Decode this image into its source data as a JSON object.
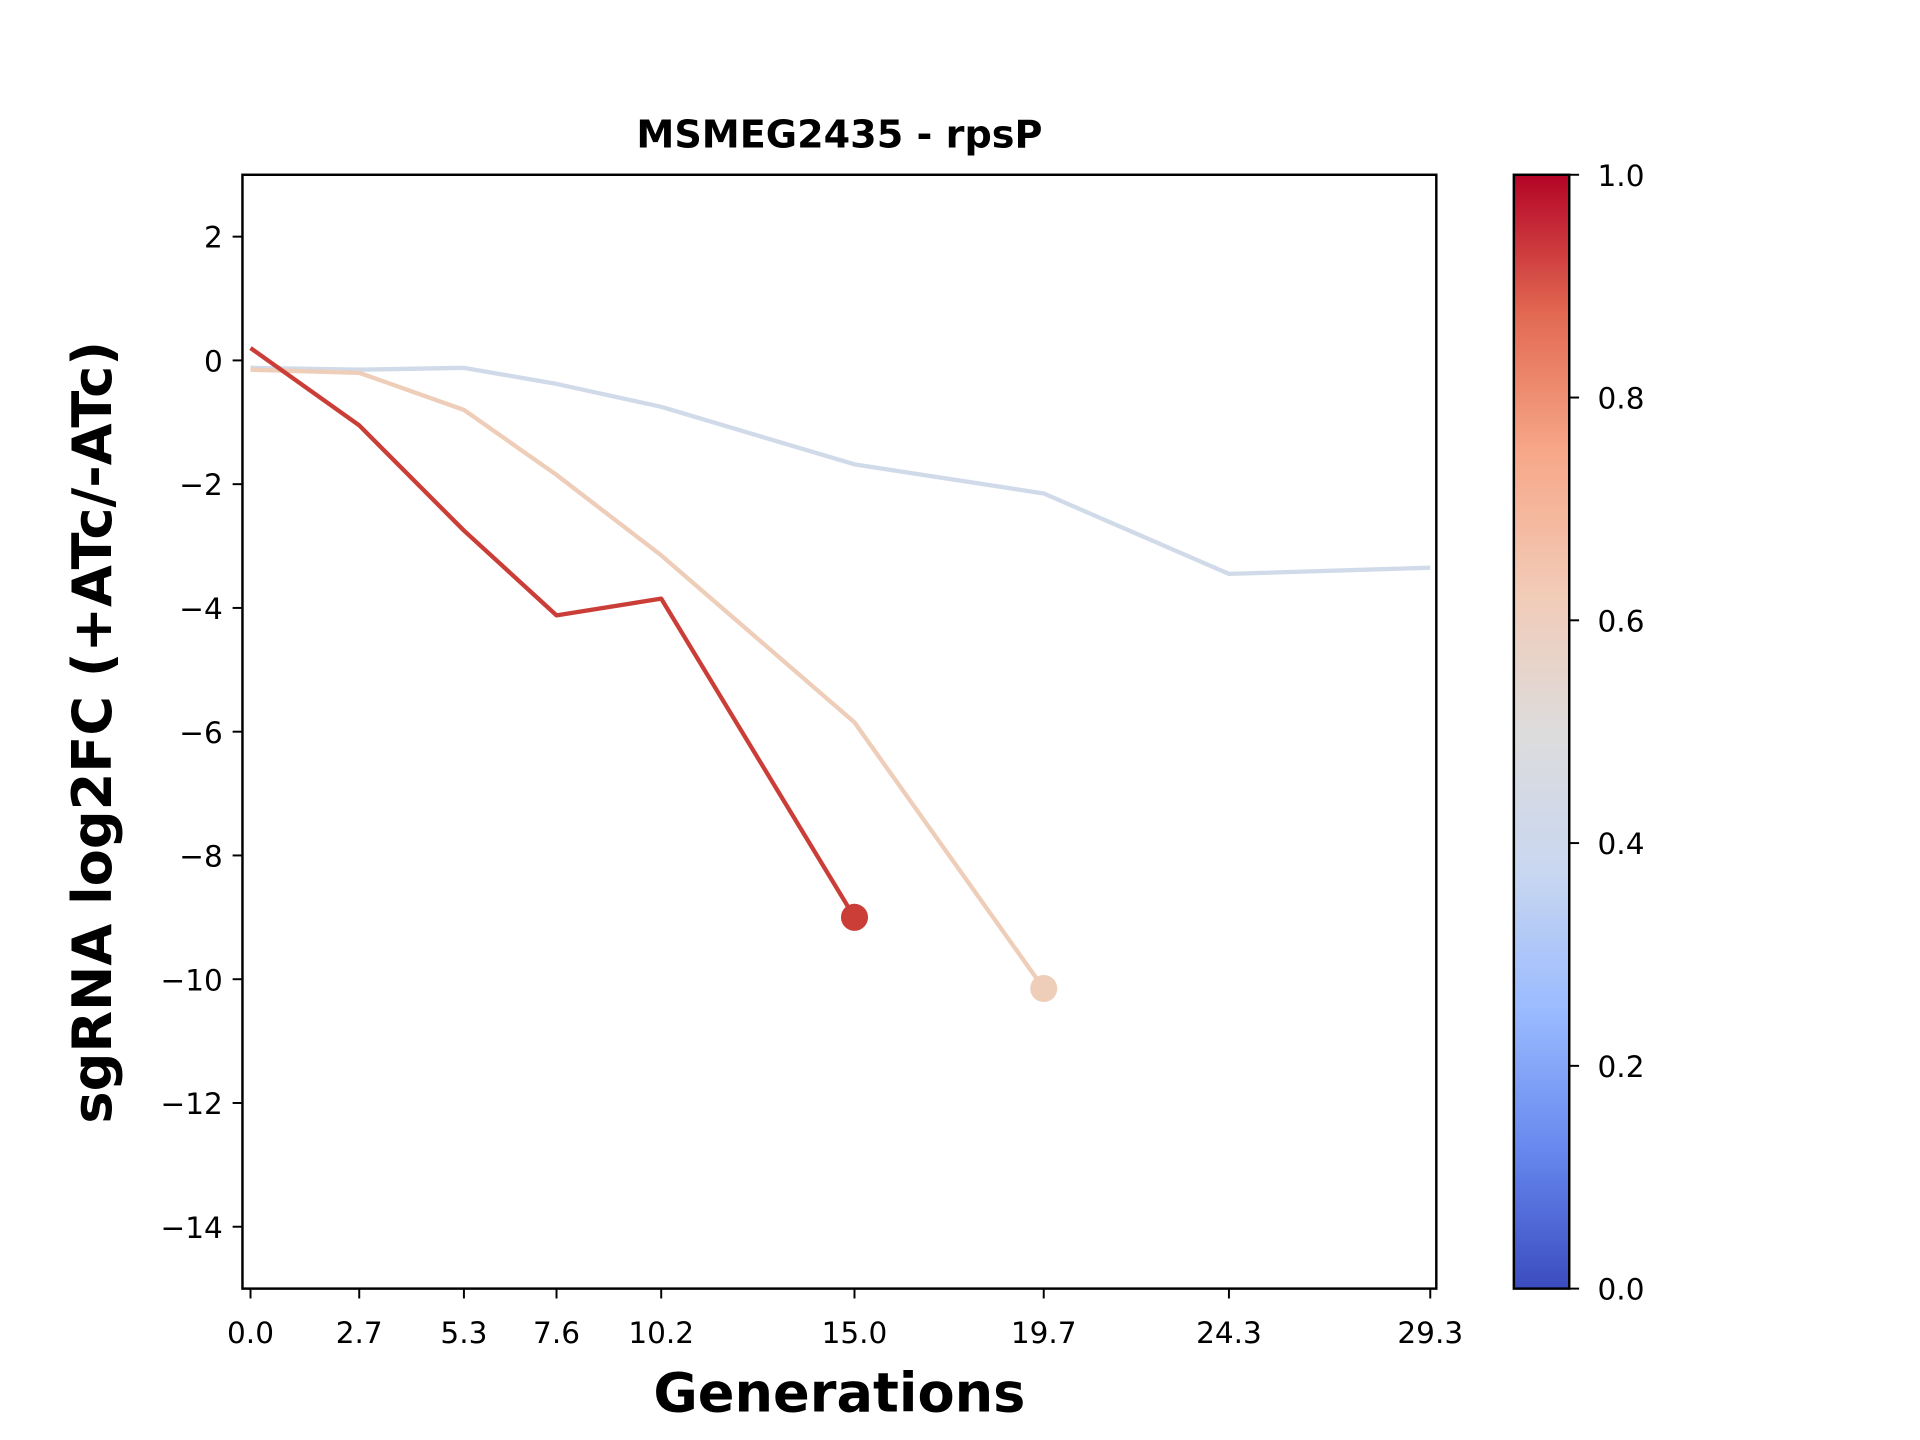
{
  "chart_data": {
    "type": "line",
    "title": "MSMEG2435 - rpsP",
    "xlabel": "Generations",
    "ylabel": "sgRNA log2FC (+ATc/-ATc)",
    "xlim": [
      -0.2,
      29.45
    ],
    "ylim": [
      -15,
      3
    ],
    "x_ticks": [
      "0.0",
      "2.7",
      "5.3",
      "7.6",
      "10.2",
      "15.0",
      "19.7",
      "24.3",
      "29.3"
    ],
    "y_ticks": [
      2,
      0,
      -2,
      -4,
      -6,
      -8,
      -10,
      -12,
      -14
    ],
    "y_tick_labels": [
      "2",
      "0",
      "−2",
      "−4",
      "−6",
      "−8",
      "−10",
      "−12",
      "−14"
    ],
    "grid": false,
    "series": [
      {
        "color": "#d0dae9",
        "x": [
          0,
          2.7,
          5.3,
          7.6,
          10.2,
          15.0,
          19.7,
          24.3,
          29.3
        ],
        "y": [
          -0.12,
          -0.15,
          -0.12,
          -0.38,
          -0.75,
          -1.68,
          -2.15,
          -3.45,
          -3.35
        ],
        "end_marker": false
      },
      {
        "color": "#eecdb9",
        "x": [
          0,
          2.7,
          5.3,
          7.6,
          10.2,
          15.0,
          19.7
        ],
        "y": [
          -0.15,
          -0.2,
          -0.8,
          -1.85,
          -3.15,
          -5.85,
          -10.15
        ],
        "end_marker": true
      },
      {
        "color": "#cb3e38",
        "x": [
          0,
          2.7,
          5.3,
          7.6,
          10.2,
          15.0
        ],
        "y": [
          0.2,
          -1.05,
          -2.75,
          -4.12,
          -3.85,
          -9.0
        ],
        "end_marker": true
      }
    ],
    "colorbar": {
      "colormap": "coolwarm",
      "range": [
        0,
        1
      ],
      "ticks": [
        "0.0",
        "0.2",
        "0.4",
        "0.6",
        "0.8",
        "1.0"
      ],
      "stops": [
        "#3b4cc0",
        "#6788ee",
        "#9abbff",
        "#c9d7f0",
        "#dddcdc",
        "#f2cbb7",
        "#f7a889",
        "#e26952",
        "#b40426"
      ]
    }
  }
}
